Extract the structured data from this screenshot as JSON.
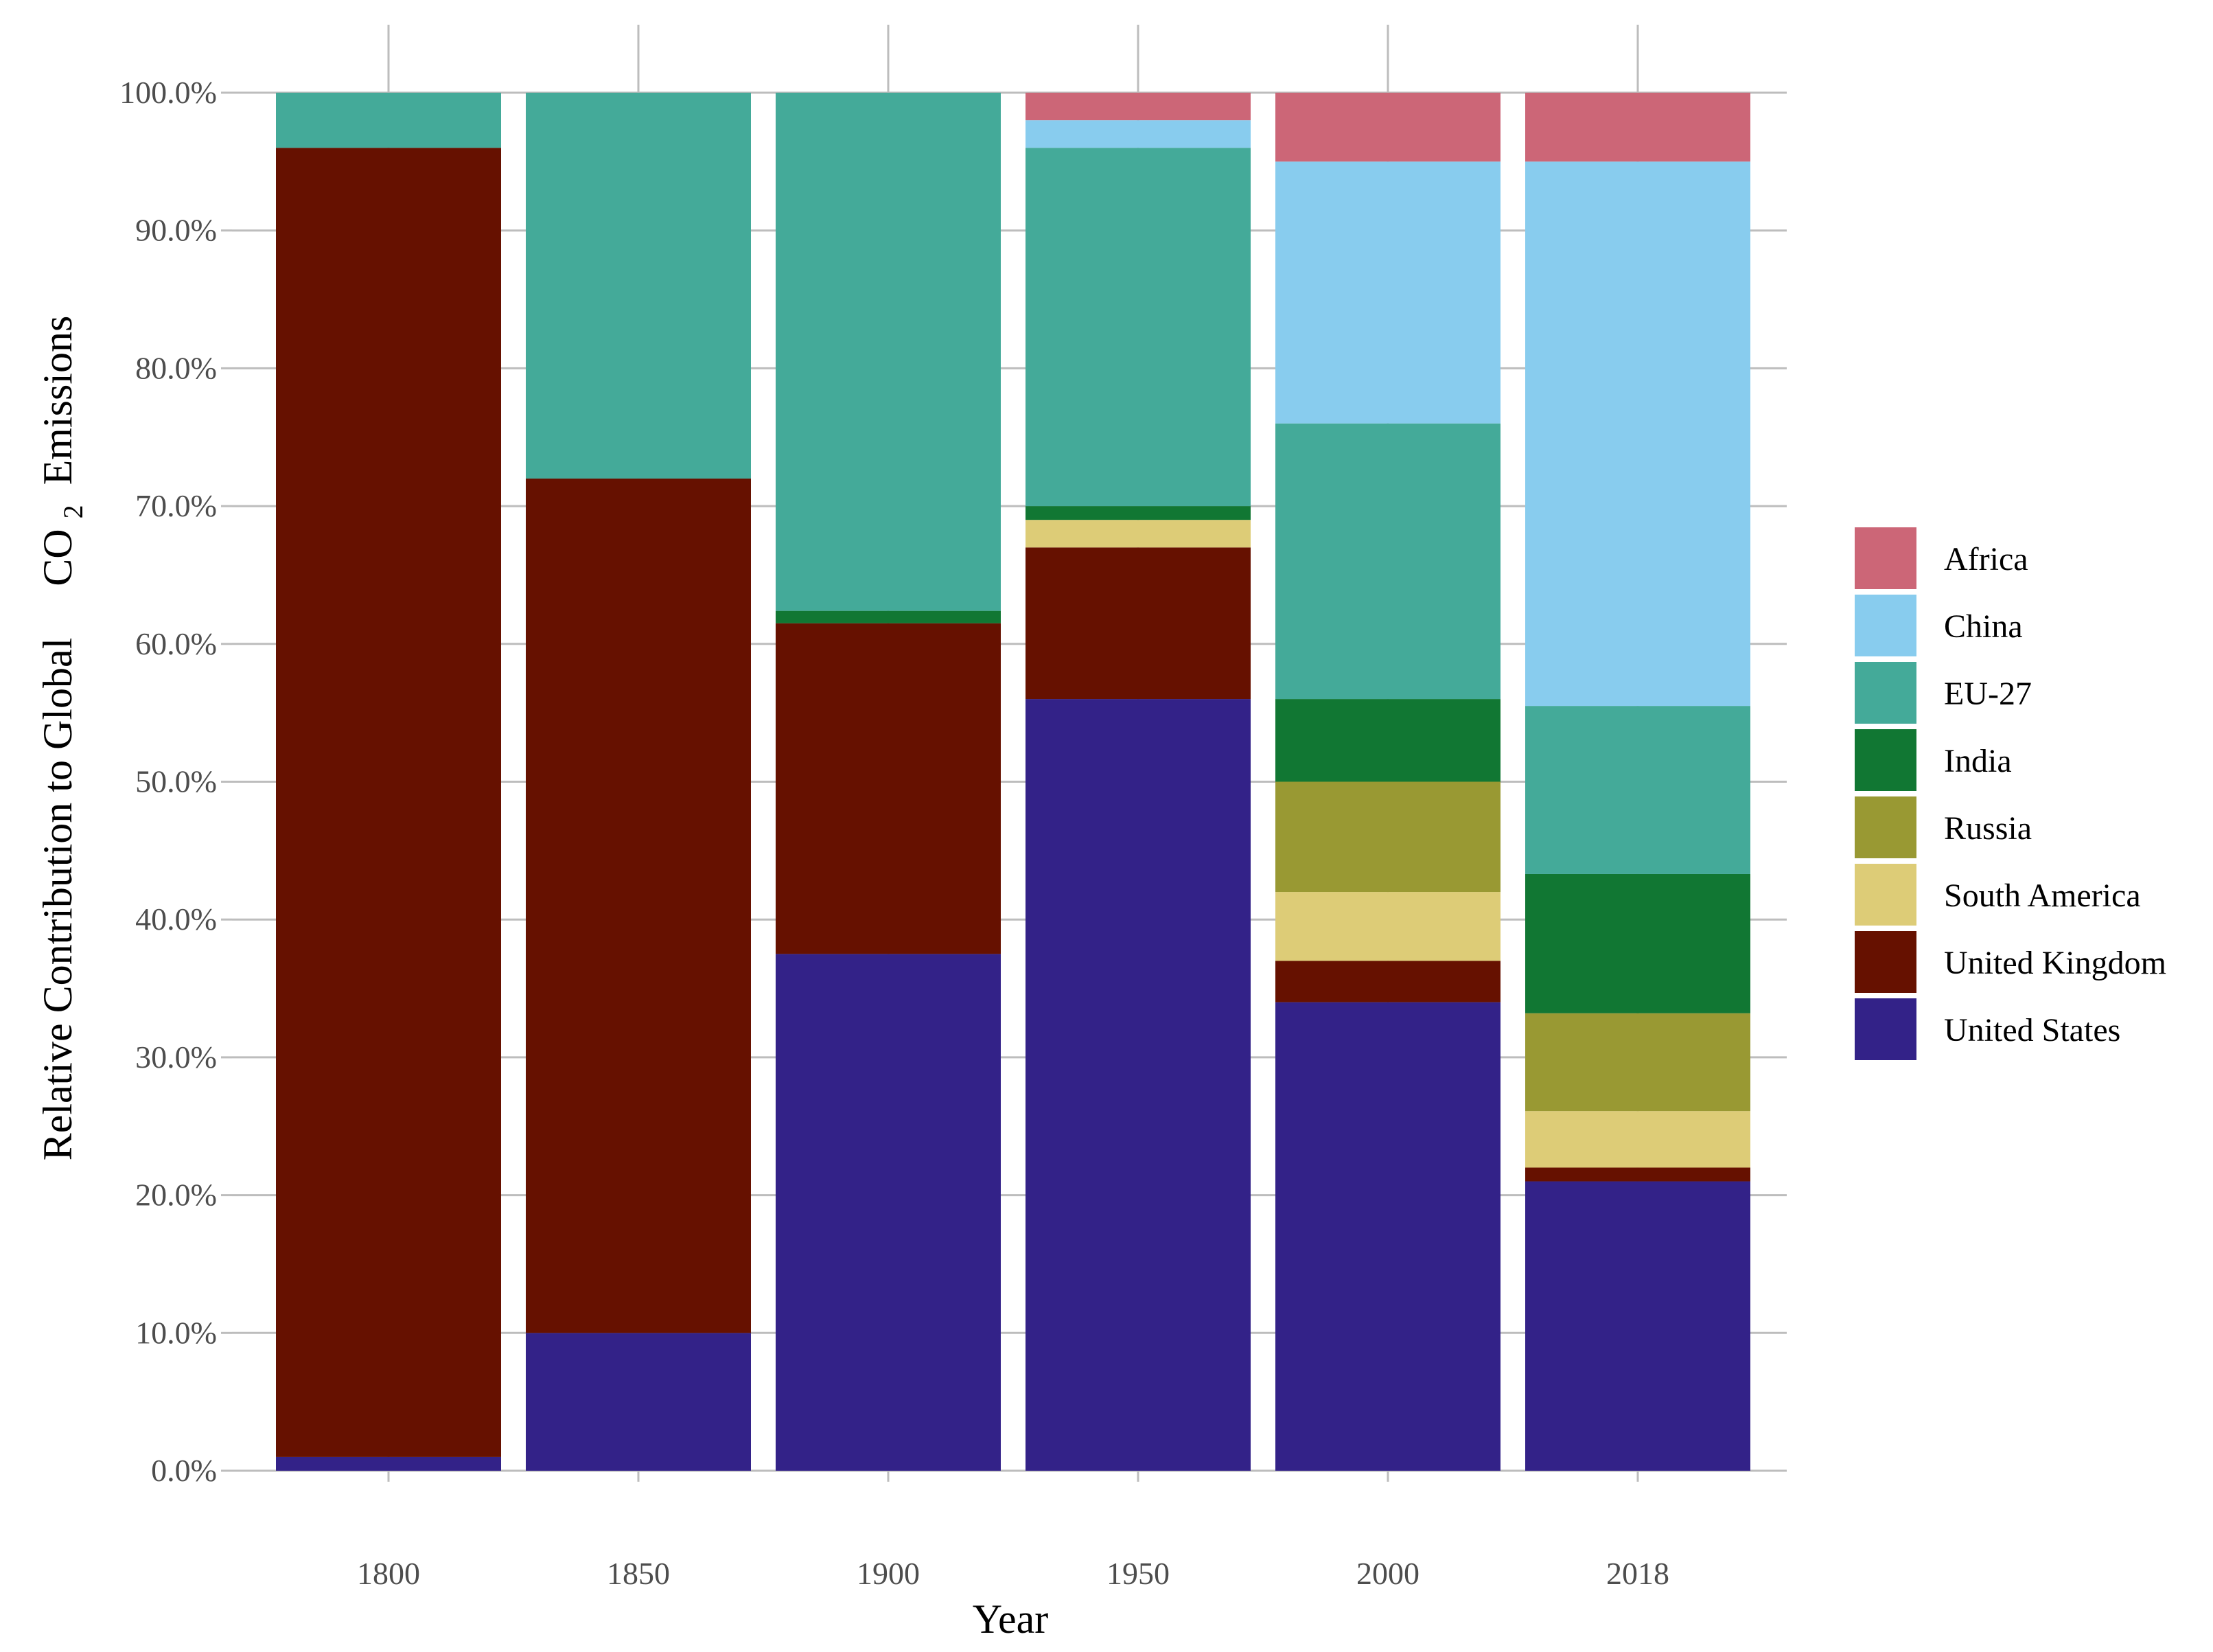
{
  "chart_data": {
    "type": "bar",
    "stacked": true,
    "title": "",
    "xlabel": "Year",
    "ylabel": {
      "prefix": "Relative Contribution to Global",
      "formula_main": "CO",
      "formula_sub": "2",
      "suffix": "Emissions"
    },
    "categories": [
      "1800",
      "1850",
      "1900",
      "1950",
      "2000",
      "2018"
    ],
    "ylim": [
      0,
      100
    ],
    "yticks": [
      0,
      10,
      20,
      30,
      40,
      50,
      60,
      70,
      80,
      90,
      100
    ],
    "ytick_labels": [
      "0.0%",
      "10.0%",
      "20.0%",
      "30.0%",
      "40.0%",
      "50.0%",
      "60.0%",
      "70.0%",
      "80.0%",
      "90.0%",
      "100.0%"
    ],
    "grid": true,
    "legend_position": "right",
    "series": [
      {
        "name": "United States",
        "color": "#332288",
        "values": [
          1.0,
          10.0,
          37.5,
          56.0,
          34.0,
          21.0
        ]
      },
      {
        "name": "United Kingdom",
        "color": "#661100",
        "values": [
          95.0,
          62.0,
          24.0,
          11.0,
          3.0,
          1.0
        ]
      },
      {
        "name": "South America",
        "color": "#DDCC77",
        "values": [
          0.0,
          0.0,
          0.0,
          2.0,
          5.0,
          4.1
        ]
      },
      {
        "name": "Russia",
        "color": "#999933",
        "values": [
          0.0,
          0.0,
          0.0,
          0.0,
          8.0,
          7.1
        ]
      },
      {
        "name": "India",
        "color": "#117733",
        "values": [
          0.0,
          0.0,
          0.9,
          1.0,
          6.0,
          10.1
        ]
      },
      {
        "name": "EU-27",
        "color": "#44AA99",
        "values": [
          4.0,
          28.0,
          37.6,
          26.0,
          20.0,
          12.2
        ]
      },
      {
        "name": "China",
        "color": "#88CCEE",
        "values": [
          0.0,
          0.0,
          0.0,
          2.0,
          19.0,
          39.5
        ]
      },
      {
        "name": "Africa",
        "color": "#CC6677",
        "values": [
          0.0,
          0.0,
          0.0,
          2.0,
          5.0,
          5.0
        ]
      }
    ],
    "legend_order": [
      "Africa",
      "China",
      "EU-27",
      "India",
      "Russia",
      "South America",
      "United Kingdom",
      "United States"
    ]
  }
}
